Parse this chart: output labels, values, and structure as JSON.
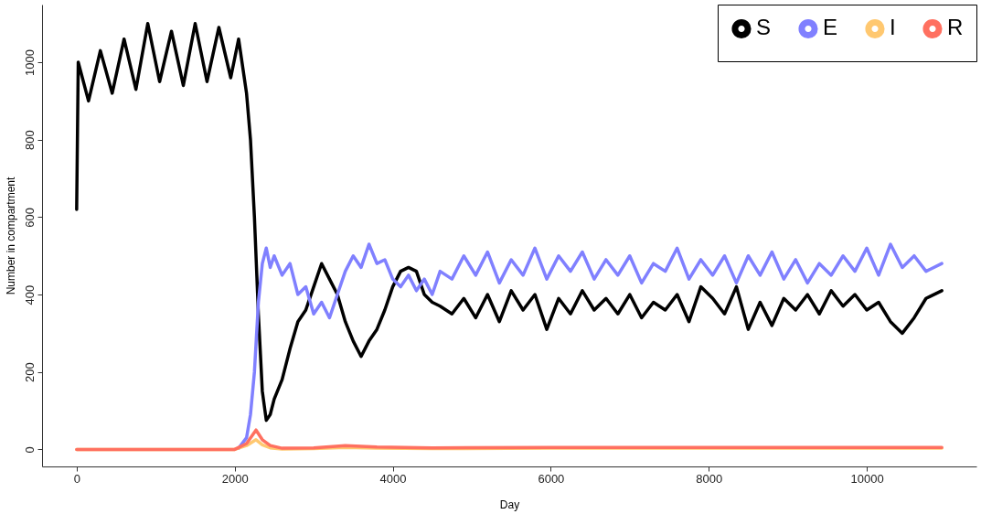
{
  "chart_data": {
    "type": "line",
    "xlabel": "Day",
    "ylabel": "Number in compartment",
    "xlim": [
      -438,
      11388
    ],
    "ylim": [
      -44,
      1149
    ],
    "xticks": [
      0,
      2000,
      4000,
      6000,
      8000,
      10000
    ],
    "yticks": [
      0,
      200,
      400,
      600,
      800,
      1000
    ],
    "grid": false,
    "legend": "top right",
    "series": [
      {
        "name": "S",
        "color": "#000000",
        "x": [
          0,
          20,
          150,
          300,
          450,
          600,
          750,
          900,
          1050,
          1200,
          1350,
          1500,
          1650,
          1800,
          1950,
          2050,
          2150,
          2200,
          2250,
          2300,
          2350,
          2400,
          2450,
          2500,
          2600,
          2700,
          2800,
          2900,
          3000,
          3100,
          3200,
          3300,
          3400,
          3500,
          3600,
          3700,
          3800,
          3900,
          4000,
          4100,
          4200,
          4300,
          4400,
          4500,
          4600,
          4750,
          4900,
          5050,
          5200,
          5350,
          5500,
          5650,
          5800,
          5950,
          6100,
          6250,
          6400,
          6550,
          6700,
          6850,
          7000,
          7150,
          7300,
          7450,
          7600,
          7750,
          7900,
          8050,
          8200,
          8350,
          8500,
          8650,
          8800,
          8950,
          9100,
          9250,
          9400,
          9550,
          9700,
          9850,
          10000,
          10150,
          10300,
          10450,
          10600,
          10750,
          10950
        ],
        "values": [
          620,
          1000,
          900,
          1030,
          920,
          1060,
          930,
          1100,
          950,
          1080,
          940,
          1100,
          950,
          1090,
          960,
          1060,
          920,
          800,
          600,
          350,
          150,
          75,
          90,
          130,
          180,
          260,
          330,
          360,
          420,
          480,
          440,
          400,
          330,
          280,
          240,
          280,
          310,
          360,
          420,
          460,
          470,
          460,
          400,
          380,
          370,
          350,
          390,
          340,
          400,
          330,
          410,
          360,
          400,
          310,
          390,
          350,
          410,
          360,
          390,
          350,
          400,
          340,
          380,
          360,
          400,
          330,
          420,
          390,
          350,
          420,
          310,
          380,
          320,
          390,
          360,
          400,
          350,
          410,
          370,
          400,
          360,
          380,
          330,
          300,
          340,
          390,
          410
        ]
      },
      {
        "name": "E",
        "color": "#8080ff",
        "x": [
          2050,
          2150,
          2200,
          2250,
          2300,
          2350,
          2400,
          2450,
          2500,
          2600,
          2700,
          2800,
          2900,
          3000,
          3100,
          3200,
          3300,
          3400,
          3500,
          3600,
          3700,
          3800,
          3900,
          4000,
          4100,
          4200,
          4300,
          4400,
          4500,
          4600,
          4750,
          4900,
          5050,
          5200,
          5350,
          5500,
          5650,
          5800,
          5950,
          6100,
          6250,
          6400,
          6550,
          6700,
          6850,
          7000,
          7150,
          7300,
          7450,
          7600,
          7750,
          7900,
          8050,
          8200,
          8350,
          8500,
          8650,
          8800,
          8950,
          9100,
          9250,
          9400,
          9550,
          9700,
          9850,
          10000,
          10150,
          10300,
          10450,
          10600,
          10750,
          10950
        ],
        "values": [
          3,
          30,
          90,
          200,
          380,
          480,
          520,
          470,
          500,
          450,
          480,
          400,
          420,
          350,
          380,
          340,
          400,
          460,
          500,
          470,
          530,
          480,
          490,
          440,
          420,
          450,
          410,
          440,
          400,
          460,
          440,
          500,
          450,
          510,
          430,
          490,
          450,
          520,
          440,
          500,
          460,
          510,
          440,
          490,
          450,
          500,
          430,
          480,
          460,
          520,
          440,
          490,
          450,
          500,
          430,
          500,
          450,
          510,
          440,
          490,
          430,
          480,
          450,
          500,
          460,
          520,
          450,
          530,
          470,
          500,
          460,
          480
        ]
      },
      {
        "name": "I",
        "color": "#ffc870",
        "x": [
          0,
          2000,
          2150,
          2270,
          2350,
          2450,
          2600,
          3000,
          3400,
          3800,
          4500,
          6000,
          8000,
          10950
        ],
        "values": [
          0,
          0,
          10,
          25,
          12,
          4,
          1,
          2,
          5,
          3,
          2,
          3,
          3,
          3
        ]
      },
      {
        "name": "R",
        "color": "#ff7060",
        "x": [
          0,
          2000,
          2150,
          2270,
          2350,
          2450,
          2600,
          3000,
          3400,
          3800,
          4500,
          6000,
          8000,
          10950
        ],
        "values": [
          0,
          0,
          15,
          50,
          25,
          10,
          3,
          4,
          10,
          6,
          4,
          5,
          5,
          5
        ]
      }
    ]
  }
}
